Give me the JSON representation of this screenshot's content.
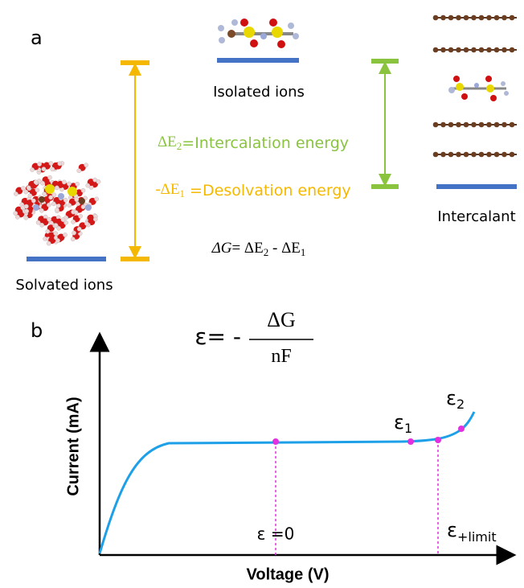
{
  "panel_a": {
    "label": "a",
    "isolated": "Isolated ions",
    "intercalation": {
      "delta": "ΔE",
      "sub": "2",
      "rest": "=Intercalation energy"
    },
    "desolvation": {
      "delta": "-ΔE",
      "sub": "1",
      "rest": " =Desolvation energy"
    },
    "intercalant": "Intercalant",
    "gibbs": {
      "lhs": "ΔG",
      "e2": "= ΔE",
      "s2": "2",
      "e1": " - ΔE",
      "s1": "1"
    },
    "solvated": "Solvated ions"
  },
  "panel_b": {
    "label": "b",
    "equation": {
      "lhs": "ε= -",
      "numerator": "ΔG",
      "denominator": "nF"
    },
    "y_axis": "Current (mA)",
    "x_axis": "Voltage (V)",
    "eps1": {
      "symbol": "ε",
      "sub": "1"
    },
    "eps2": {
      "symbol": "ε",
      "sub": "2"
    },
    "eps0": "ε =0",
    "epslimit": {
      "symbol": "ε",
      "sub": "+limit"
    }
  }
}
